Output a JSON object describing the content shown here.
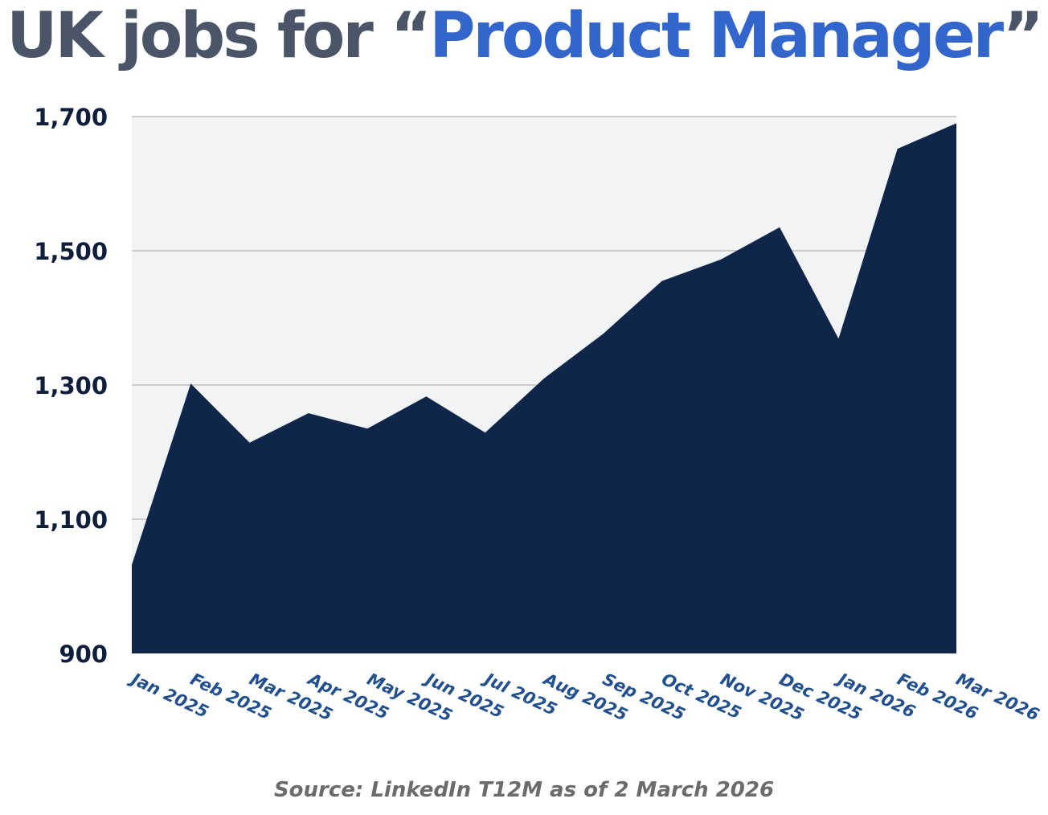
{
  "title": {
    "prefix": "UK jobs for “",
    "highlight": "Product Manager",
    "suffix": "”"
  },
  "source": "Source: LinkedIn T12M as of 2 March 2026",
  "colors": {
    "title_text": "#4a5568",
    "title_highlight": "#3366cc",
    "area_fill": "#0f254a",
    "plot_background": "#f2f3f5",
    "gridline": "#b5b5b5",
    "y_tick_text": "#0f1e3c",
    "x_tick_text": "#22508f",
    "source_text": "#6b6b6b"
  },
  "chart_data": {
    "type": "area",
    "title": "UK jobs for “Product Manager”",
    "categories": [
      "Jan 2025",
      "Feb 2025",
      "Mar 2025",
      "Apr 2025",
      "May 2025",
      "Jun 2025",
      "Jul 2025",
      "Aug 2025",
      "Sep 2025",
      "Oct 2025",
      "Nov 2025",
      "Dec 2025",
      "Jan 2026",
      "Feb 2026",
      "Mar 2026"
    ],
    "values": [
      1032,
      1302,
      1214,
      1258,
      1235,
      1283,
      1229,
      1310,
      1376,
      1455,
      1487,
      1535,
      1369,
      1652,
      1690
    ],
    "ylim": [
      900,
      1700
    ],
    "yticks": [
      1700,
      1500,
      1300,
      1100,
      900
    ],
    "ytick_labels": [
      "1,700",
      "1,500",
      "1,300",
      "1,100",
      "900"
    ],
    "xlabel": "",
    "ylabel": "",
    "grid": "horizontal",
    "legend": "none"
  }
}
